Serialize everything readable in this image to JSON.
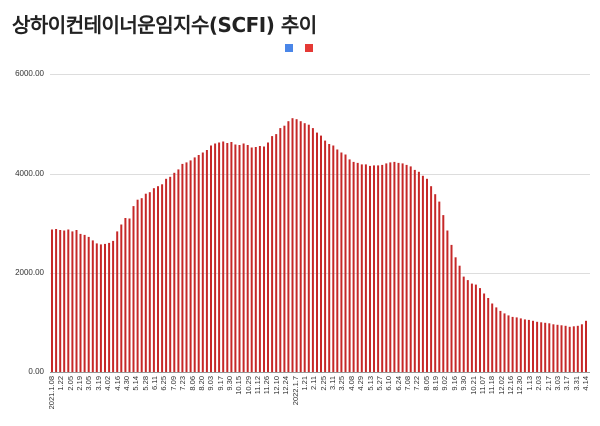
{
  "title": "상하이컨테이너운임지수(SCFI) 추이",
  "legend": [
    {
      "color": "#4a86e8"
    },
    {
      "color": "#e53935"
    }
  ],
  "chart_data": {
    "type": "bar",
    "title": "상하이컨테이너운임지수(SCFI) 추이",
    "xlabel": "",
    "ylabel": "",
    "ylim": [
      0,
      6000
    ],
    "yticks": [
      "0.00",
      "2000.00",
      "4000.00",
      "6000.00"
    ],
    "grid": true,
    "bar_color": "#c62828",
    "x_tick_labels": [
      "2021.1.08",
      "1.22",
      "2.05",
      "2.19",
      "3.05",
      "3.19",
      "4.02",
      "4.16",
      "4.30",
      "5.14",
      "5.28",
      "6.11",
      "6.25",
      "7.09",
      "7.23",
      "8.06",
      "8.20",
      "9.03",
      "9.17",
      "9.30",
      "10.15",
      "10.29",
      "11.12",
      "11.26",
      "12.10",
      "12.24",
      "2022.1.7",
      "1.21",
      "2.11",
      "2.25",
      "3.11",
      "3.25",
      "4.08",
      "4.29",
      "5.13",
      "5.27",
      "6.10",
      "6.24",
      "7.08",
      "7.22",
      "8.05",
      "8.19",
      "9.02",
      "9.16",
      "9.30",
      "10.21",
      "11.07",
      "11.18",
      "12.02",
      "12.16",
      "12.30",
      "1.13",
      "2.03",
      "2.17",
      "3.03",
      "3.17",
      "3.31",
      "4.14"
    ],
    "values": [
      2870,
      2880,
      2860,
      2850,
      2870,
      2830,
      2860,
      2780,
      2760,
      2720,
      2650,
      2590,
      2570,
      2580,
      2600,
      2640,
      2830,
      2970,
      3100,
      3090,
      3340,
      3470,
      3500,
      3590,
      3620,
      3700,
      3740,
      3780,
      3890,
      3930,
      4010,
      4080,
      4190,
      4220,
      4260,
      4320,
      4370,
      4420,
      4470,
      4560,
      4600,
      4620,
      4640,
      4610,
      4630,
      4580,
      4570,
      4600,
      4570,
      4520,
      4530,
      4550,
      4540,
      4620,
      4750,
      4790,
      4910,
      4960,
      5050,
      5110,
      5090,
      5050,
      5010,
      4980,
      4910,
      4820,
      4760,
      4660,
      4590,
      4560,
      4480,
      4420,
      4380,
      4280,
      4230,
      4210,
      4180,
      4180,
      4150,
      4160,
      4160,
      4170,
      4200,
      4220,
      4230,
      4210,
      4200,
      4170,
      4140,
      4070,
      4030,
      3950,
      3890,
      3740,
      3580,
      3430,
      3160,
      2850,
      2560,
      2310,
      2140,
      1920,
      1850,
      1780,
      1760,
      1690,
      1580,
      1490,
      1380,
      1300,
      1230,
      1180,
      1140,
      1110,
      1100,
      1080,
      1060,
      1050,
      1030,
      1010,
      1000,
      990,
      980,
      960,
      950,
      940,
      930,
      910,
      920,
      930,
      960,
      1030
    ]
  }
}
